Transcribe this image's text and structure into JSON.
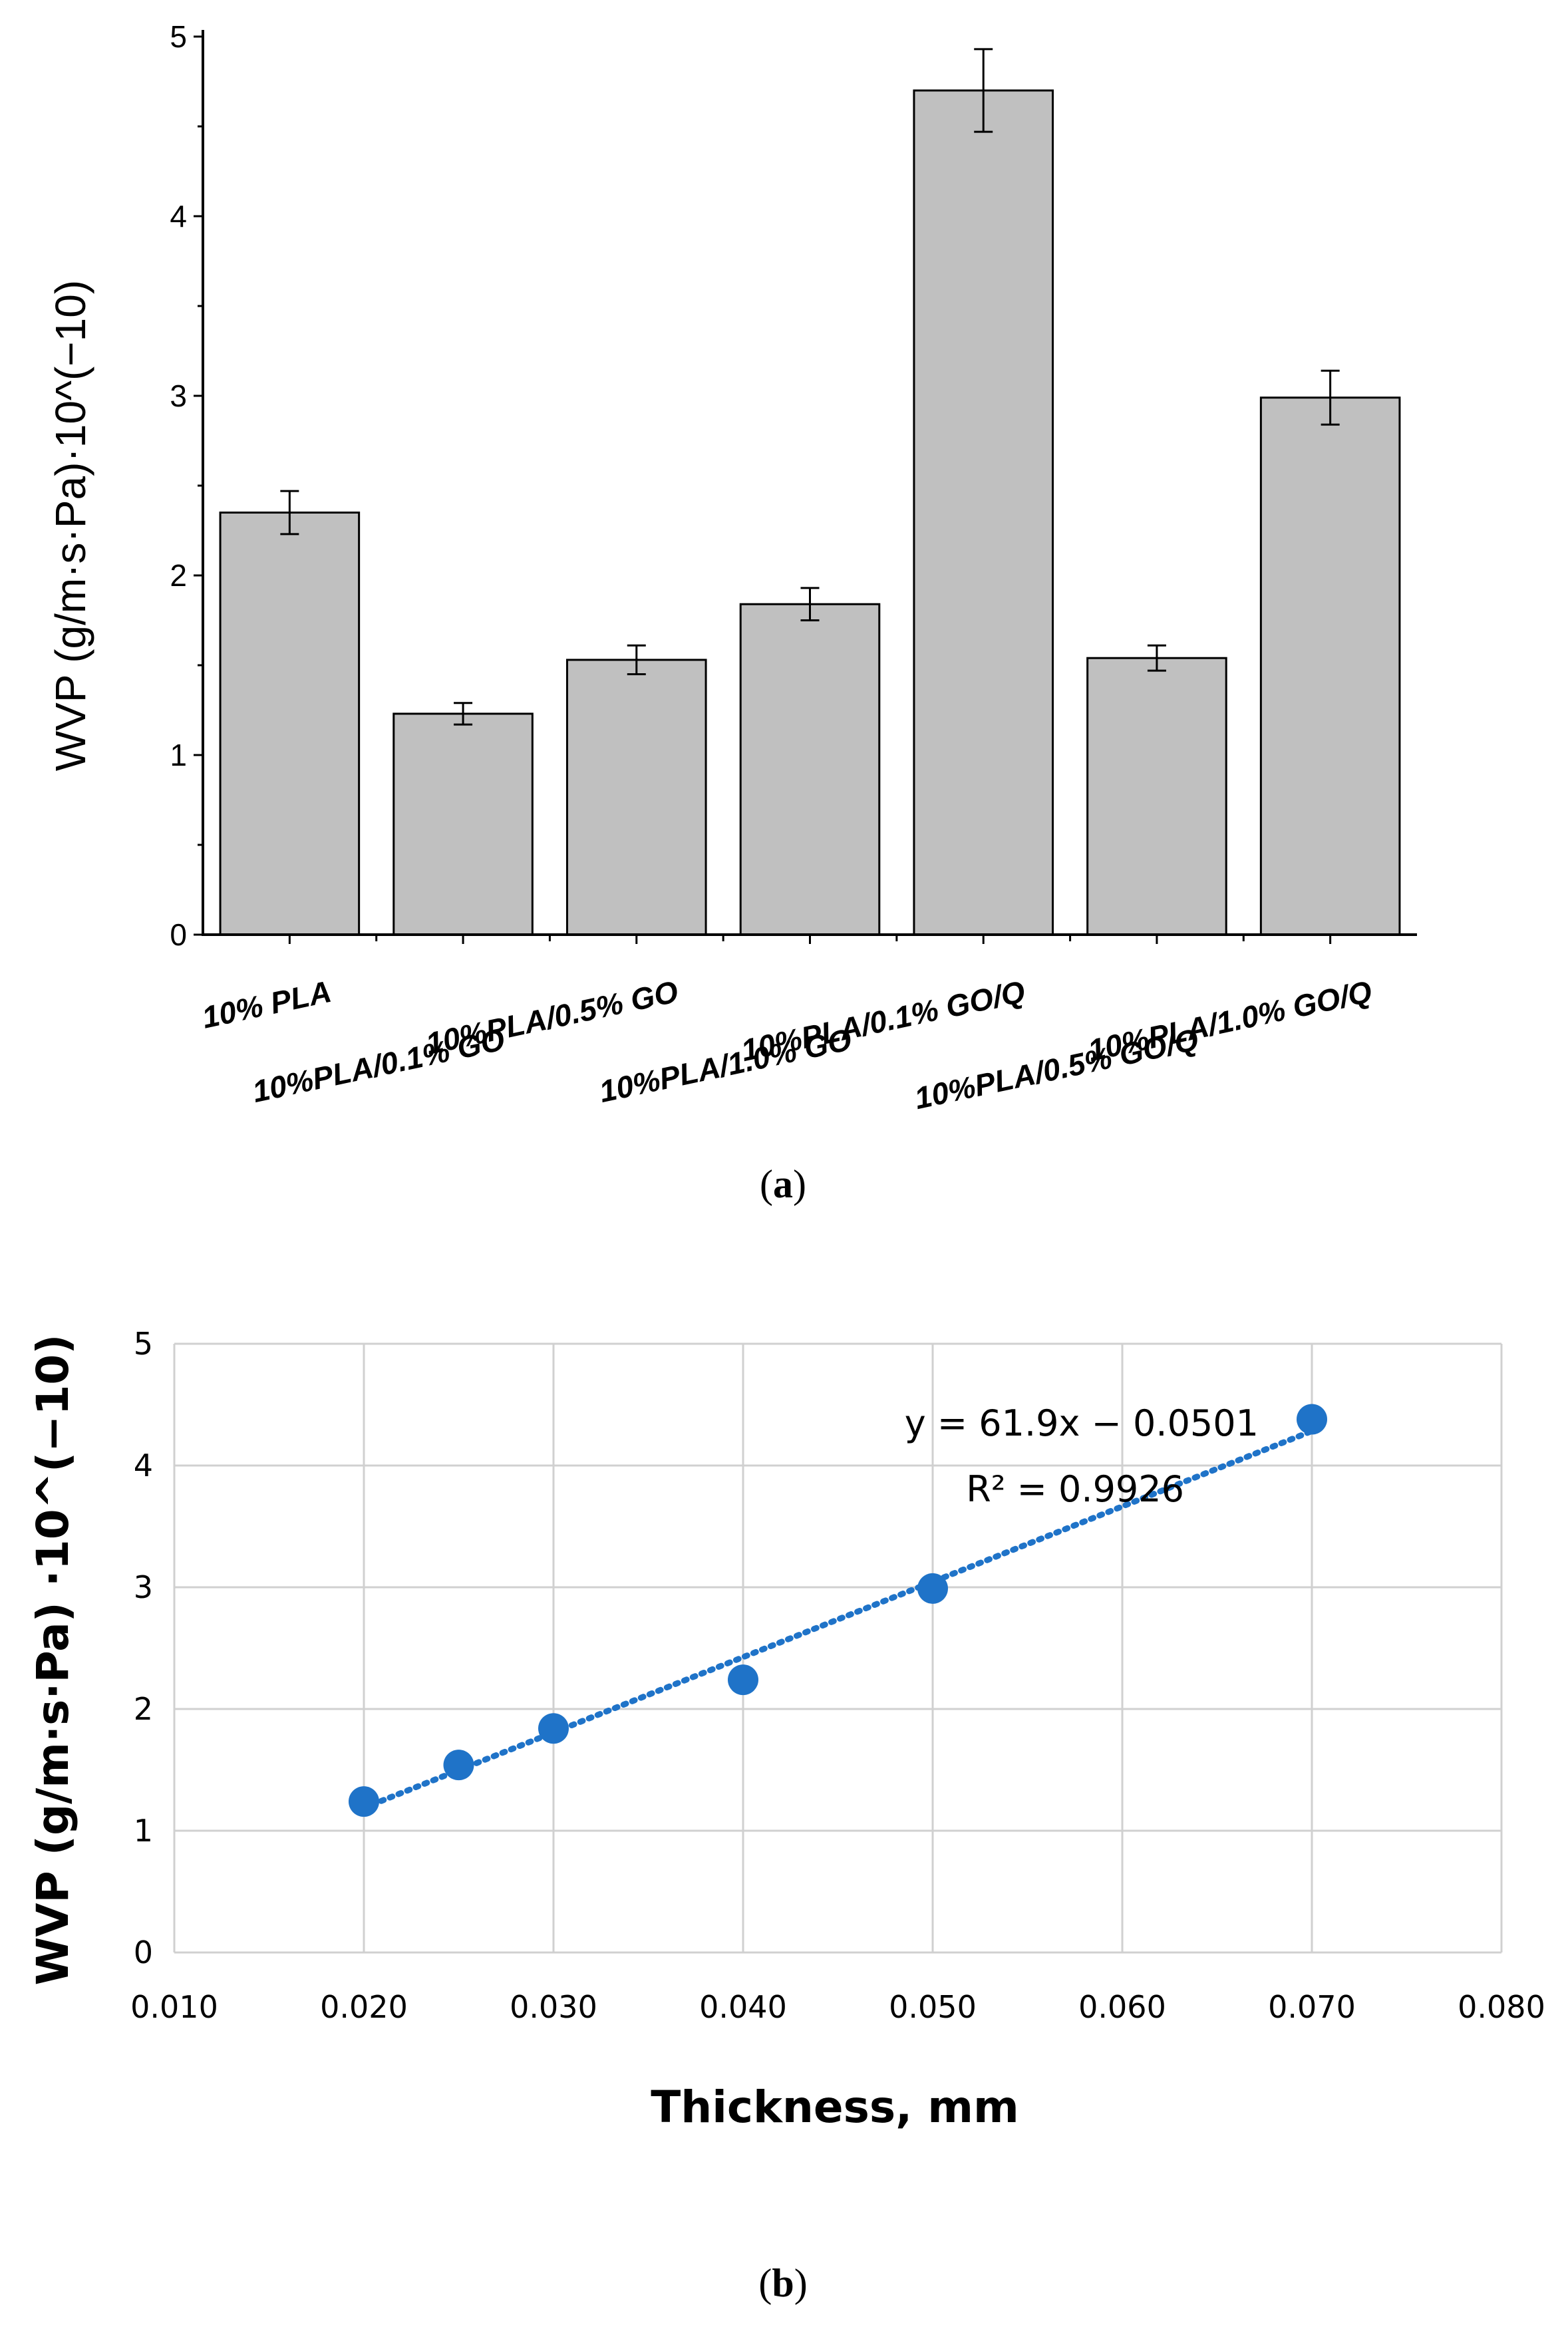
{
  "chart_data": [
    {
      "type": "bar",
      "panel": "a",
      "caption_open": "(",
      "caption_letter": "a",
      "caption_close": ")",
      "ylabel": "WVP (g/m·s·Pa)·10^(−10)",
      "xlabel": "",
      "ylim": [
        0,
        5
      ],
      "yticks": [
        "0",
        "1",
        "2",
        "3",
        "4",
        "5"
      ],
      "categories": [
        "10% PLA",
        "10%PLA/0.1% GO",
        "10%PLA/0.5% GO",
        "10%PLA/1.0% GO",
        "10%PLA/0.1% GO/Q",
        "10%PLA/0.5% GO/Q",
        "10%PLA/1.0% GO/Q"
      ],
      "values": [
        2.35,
        1.23,
        1.53,
        1.84,
        4.7,
        1.54,
        2.99
      ],
      "errors": [
        0.12,
        0.06,
        0.08,
        0.09,
        0.23,
        0.07,
        0.15
      ],
      "bar_color": "#c0c0c0",
      "edge_color": "#000000"
    },
    {
      "type": "scatter",
      "panel": "b",
      "caption_open": "(",
      "caption_letter": "b",
      "caption_close": ")",
      "ylabel": "WVP (g/m·s·Pa) ·10^(−10)",
      "xlabel": "Thickness, mm",
      "xlim": [
        0.01,
        0.08
      ],
      "ylim": [
        0,
        5
      ],
      "xticks": [
        "0.010",
        "0.020",
        "0.030",
        "0.040",
        "0.050",
        "0.060",
        "0.070",
        "0.080"
      ],
      "yticks": [
        "0",
        "1",
        "2",
        "3",
        "4",
        "5"
      ],
      "grid": true,
      "points": [
        {
          "x": 0.02,
          "y": 1.24
        },
        {
          "x": 0.025,
          "y": 1.54
        },
        {
          "x": 0.03,
          "y": 1.84
        },
        {
          "x": 0.04,
          "y": 2.24
        },
        {
          "x": 0.05,
          "y": 2.99
        },
        {
          "x": 0.07,
          "y": 4.38
        }
      ],
      "trendline": {
        "slope": 61.9,
        "intercept": -0.0501,
        "x_start": 0.02,
        "x_end": 0.07
      },
      "equation": "y = 61.9x − 0.0501",
      "r_squared": "R² = 0.9926",
      "marker_color": "#1f73c8"
    }
  ]
}
